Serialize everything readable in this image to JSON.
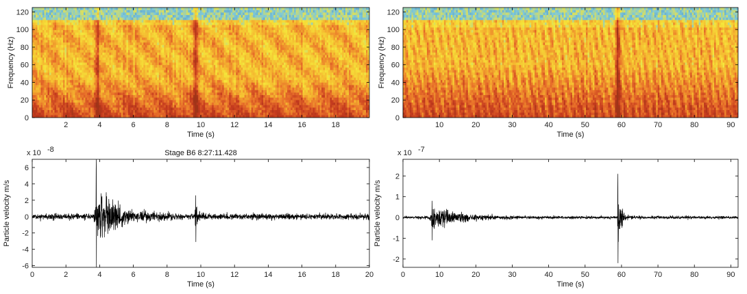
{
  "chart_data": [
    {
      "type": "heatmap",
      "title": "",
      "xlabel": "Time (s)",
      "ylabel": "Frequency (Hz)",
      "xlim": [
        0,
        20
      ],
      "ylim": [
        0,
        125
      ],
      "xticks": [
        2,
        4,
        6,
        8,
        10,
        12,
        14,
        16,
        18
      ],
      "yticks": [
        0,
        20,
        40,
        60,
        80,
        100,
        120
      ],
      "colormap": [
        "#4a90c8",
        "#7ec8d8",
        "#f5e63a",
        "#f5b830",
        "#e8702a",
        "#c43a1e",
        "#a03418"
      ],
      "events": [
        {
          "t": 3.9,
          "strength": 0.6
        },
        {
          "t": 9.7,
          "strength": 0.9
        }
      ],
      "noise_floor_hz": 112,
      "low_freq_energy_hz": [
        0,
        45
      ]
    },
    {
      "type": "heatmap",
      "title": "",
      "xlabel": "Time (s)",
      "ylabel": "Frequency (Hz)",
      "xlim": [
        0,
        92
      ],
      "ylim": [
        0,
        125
      ],
      "xticks": [
        10,
        20,
        30,
        40,
        50,
        60,
        70,
        80,
        90
      ],
      "yticks": [
        0,
        20,
        40,
        60,
        80,
        100,
        120
      ],
      "colormap": [
        "#4a90c8",
        "#7ec8d8",
        "#f5e63a",
        "#f5b830",
        "#e8702a",
        "#c43a1e",
        "#a03418"
      ],
      "events": [
        {
          "t": 59,
          "strength": 1.0
        }
      ],
      "noise_floor_hz": 110,
      "low_freq_energy_hz": [
        0,
        60
      ]
    },
    {
      "type": "line",
      "title": "Stage B6 8:27:11.428",
      "xlabel": "Time (s)",
      "ylabel": "Particle velocity m/s",
      "exponent_label": "x 10",
      "exponent": "-8",
      "xlim": [
        0,
        20
      ],
      "ylim": [
        -6.2,
        7
      ],
      "xticks": [
        0,
        2,
        4,
        6,
        8,
        10,
        12,
        14,
        16,
        18,
        20
      ],
      "yticks": [
        -6,
        -4,
        -2,
        0,
        2,
        4,
        6
      ],
      "events": [
        {
          "t": 3.8,
          "peak_max": 7.0,
          "peak_min": -6.2,
          "decay_s": 2.5
        },
        {
          "t": 9.7,
          "peak_max": 2.6,
          "peak_min": -3.1,
          "decay_s": 0.3
        }
      ],
      "noise_amplitude": 0.6
    },
    {
      "type": "line",
      "title": "",
      "xlabel": "Time (s)",
      "ylabel": "Particle velocity m/s",
      "exponent_label": "x 10",
      "exponent": "-7",
      "xlim": [
        0,
        92
      ],
      "ylim": [
        -2.4,
        2.8
      ],
      "xticks": [
        0,
        10,
        20,
        30,
        40,
        50,
        60,
        70,
        80,
        90
      ],
      "yticks": [
        -2,
        -1,
        0,
        1,
        2
      ],
      "events": [
        {
          "t": 8,
          "peak_max": 0.8,
          "peak_min": -1.1,
          "decay_s": 14
        },
        {
          "t": 59,
          "peak_max": 2.1,
          "peak_min": -2.2,
          "decay_s": 2
        }
      ],
      "noise_amplitude": 0.12
    }
  ]
}
